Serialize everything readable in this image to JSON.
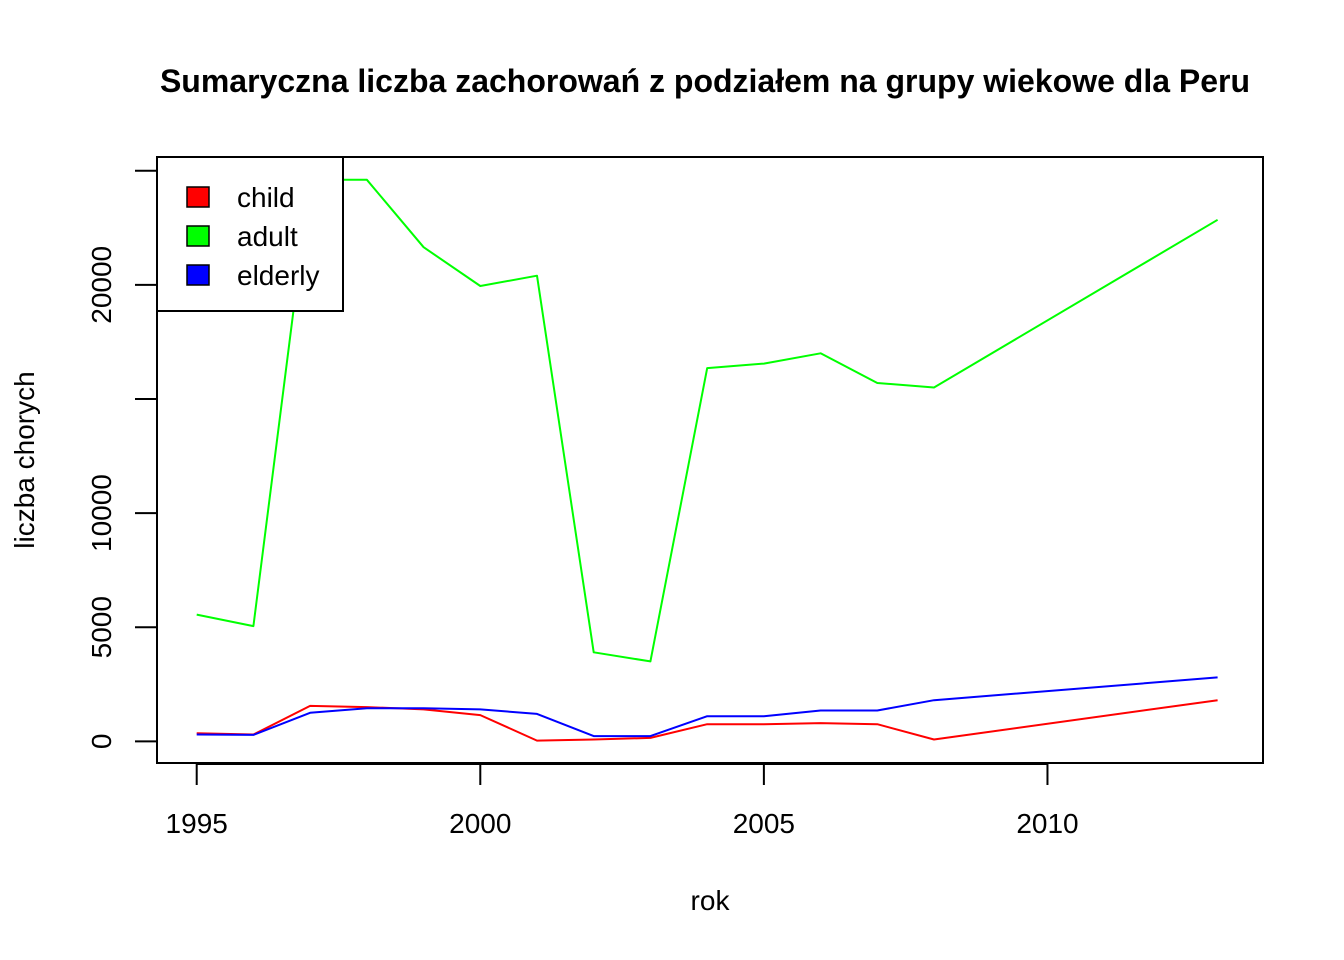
{
  "chart_data": {
    "type": "line",
    "title": "Sumaryczna liczba zachorowań z podziałem na grupy wiekowe dla Peru",
    "xlabel": "rok",
    "ylabel": "liczba chorych",
    "xlim": [
      1994.3,
      2013.8
    ],
    "ylim": [
      -950,
      25600
    ],
    "x_ticks": [
      1995,
      2000,
      2005,
      2010
    ],
    "y_ticks": [
      0,
      5000,
      10000,
      15000,
      20000,
      25000
    ],
    "y_tick_labels": [
      "0",
      "5000",
      "10000",
      "",
      "20000",
      ""
    ],
    "x": [
      1995,
      1996,
      1997,
      1998,
      1999,
      2000,
      2001,
      2002,
      2003,
      2004,
      2005,
      2006,
      2007,
      2008,
      2013
    ],
    "series": [
      {
        "name": "child",
        "color": "#ff0000",
        "values": [
          350,
          300,
          1550,
          1500,
          1400,
          1150,
          30,
          80,
          150,
          750,
          750,
          800,
          750,
          80,
          1800
        ]
      },
      {
        "name": "adult",
        "color": "#00ff00",
        "values": [
          5550,
          5050,
          24600,
          24600,
          21650,
          19950,
          20400,
          3900,
          3500,
          16350,
          16550,
          17000,
          15700,
          15500,
          22850
        ]
      },
      {
        "name": "elderly",
        "color": "#0000ff",
        "values": [
          300,
          280,
          1250,
          1450,
          1450,
          1400,
          1200,
          230,
          230,
          1100,
          1100,
          1350,
          1350,
          1800,
          2800
        ]
      }
    ],
    "legend": {
      "position": "top-left"
    },
    "grid": false
  }
}
